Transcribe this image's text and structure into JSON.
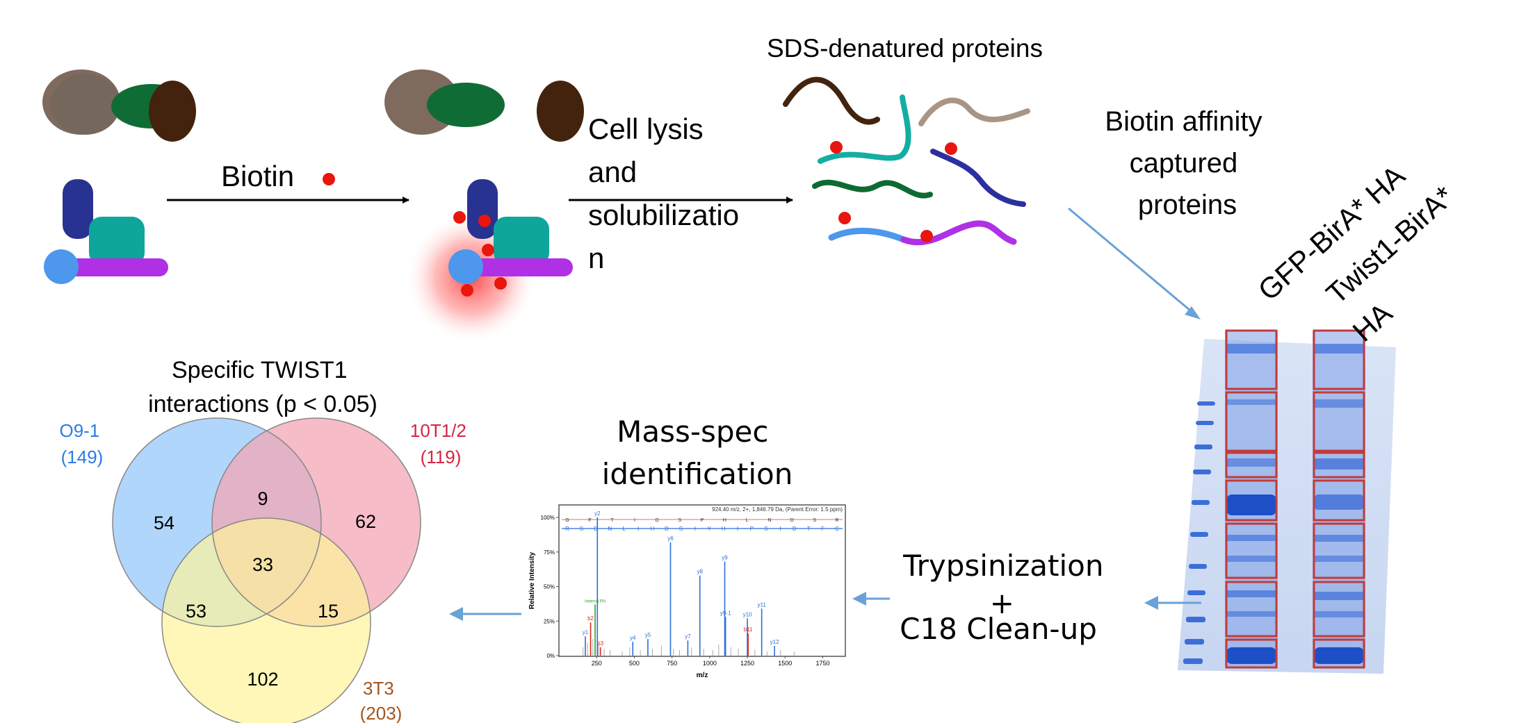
{
  "steps": {
    "biotin_label": "Biotin",
    "lysis_label": [
      "Cell lysis",
      "and",
      "solubilizatio",
      "n"
    ],
    "denatured_label": "SDS-denatured proteins",
    "affinity_label": [
      "Biotin affinity",
      "captured",
      "proteins"
    ],
    "trypsin_label": [
      "Trypsinization",
      "+",
      "C18 Clean-up"
    ],
    "massspec_label": [
      "Mass-spec",
      "identification"
    ]
  },
  "gel": {
    "lane1_label": "GFP-BirA* HA",
    "lane2_label": [
      "Twist1-BirA*",
      "HA"
    ]
  },
  "venn": {
    "title": [
      "Specific TWIST1",
      "interactions (p < 0.05)"
    ],
    "sets": [
      {
        "name": "O9-1",
        "count": "(149)",
        "color": "#2a7de1"
      },
      {
        "name": "10T1/2",
        "count": "(119)",
        "color": "#d62440"
      },
      {
        "name": "3T3",
        "count": "(203)",
        "color": "#a2561c"
      }
    ],
    "regions": {
      "a_only": "54",
      "ab": "9",
      "b_only": "62",
      "abc": "33",
      "ac": "53",
      "bc": "15",
      "c_only": "102"
    }
  },
  "spectrum": {
    "header": "924.40 m/z, 2+, 1,846.79 Da,  (Parent Error: 1.5 ppm)",
    "y_axis_label": "Relative Intensity",
    "x_axis_label": "m/z",
    "y_ticks": [
      "100%",
      "75%",
      "50%",
      "25%",
      "0%"
    ],
    "x_ticks": [
      "250",
      "500",
      "750",
      "1000",
      "1250",
      "1500",
      "1750"
    ],
    "seq_top": [
      "G",
      "F",
      "T",
      "I",
      "D",
      "S",
      "P",
      "H",
      "L",
      "N",
      "D",
      "S",
      "R"
    ],
    "seq_bottom": [
      "R",
      "S",
      "D",
      "N",
      "L",
      "I",
      "H",
      "D",
      "S",
      "I",
      "Y",
      "H",
      "I",
      "P",
      "S",
      "I",
      "D",
      "T",
      "F",
      "C"
    ],
    "peaks": [
      {
        "mz": 255,
        "rel": 100,
        "ion": "y2",
        "type": "y"
      },
      {
        "mz": 175,
        "rel": 14,
        "ion": "y1",
        "type": "y"
      },
      {
        "mz": 210,
        "rel": 24,
        "ion": "b2",
        "type": "b"
      },
      {
        "mz": 275,
        "rel": 6,
        "ion": "b3",
        "type": "b"
      },
      {
        "mz": 240,
        "rel": 37,
        "ion": "Internal PH",
        "type": "i"
      },
      {
        "mz": 490,
        "rel": 10,
        "ion": "y4",
        "type": "y"
      },
      {
        "mz": 590,
        "rel": 12,
        "ion": "y5",
        "type": "y"
      },
      {
        "mz": 740,
        "rel": 82,
        "ion": "y6",
        "type": "y"
      },
      {
        "mz": 855,
        "rel": 11,
        "ion": "y7",
        "type": "y"
      },
      {
        "mz": 935,
        "rel": 58,
        "ion": "y8",
        "type": "y"
      },
      {
        "mz": 1100,
        "rel": 68,
        "ion": "y9",
        "type": "y"
      },
      {
        "mz": 1105,
        "rel": 28,
        "ion": "y9-1",
        "type": "y"
      },
      {
        "mz": 1250,
        "rel": 27,
        "ion": "y10",
        "type": "y"
      },
      {
        "mz": 1255,
        "rel": 16,
        "ion": "b11",
        "type": "b"
      },
      {
        "mz": 1345,
        "rel": 34,
        "ion": "y11",
        "type": "y"
      },
      {
        "mz": 1430,
        "rel": 7,
        "ion": "y12",
        "type": "y"
      }
    ],
    "colors": {
      "y": "#2b6fd6",
      "b": "#d62a1e",
      "i": "#2aa52a",
      "noise": "#a9a9a9"
    }
  },
  "colors": {
    "arrow_blue": "#6aa2d6",
    "gel_blue": "#3d6ed8",
    "box_red": "#c23b3b",
    "biotin_red": "#e8160e",
    "venn_blue": "#a9d1fb",
    "venn_red": "#f3a6b4",
    "venn_yellow": "#fdf39a"
  }
}
